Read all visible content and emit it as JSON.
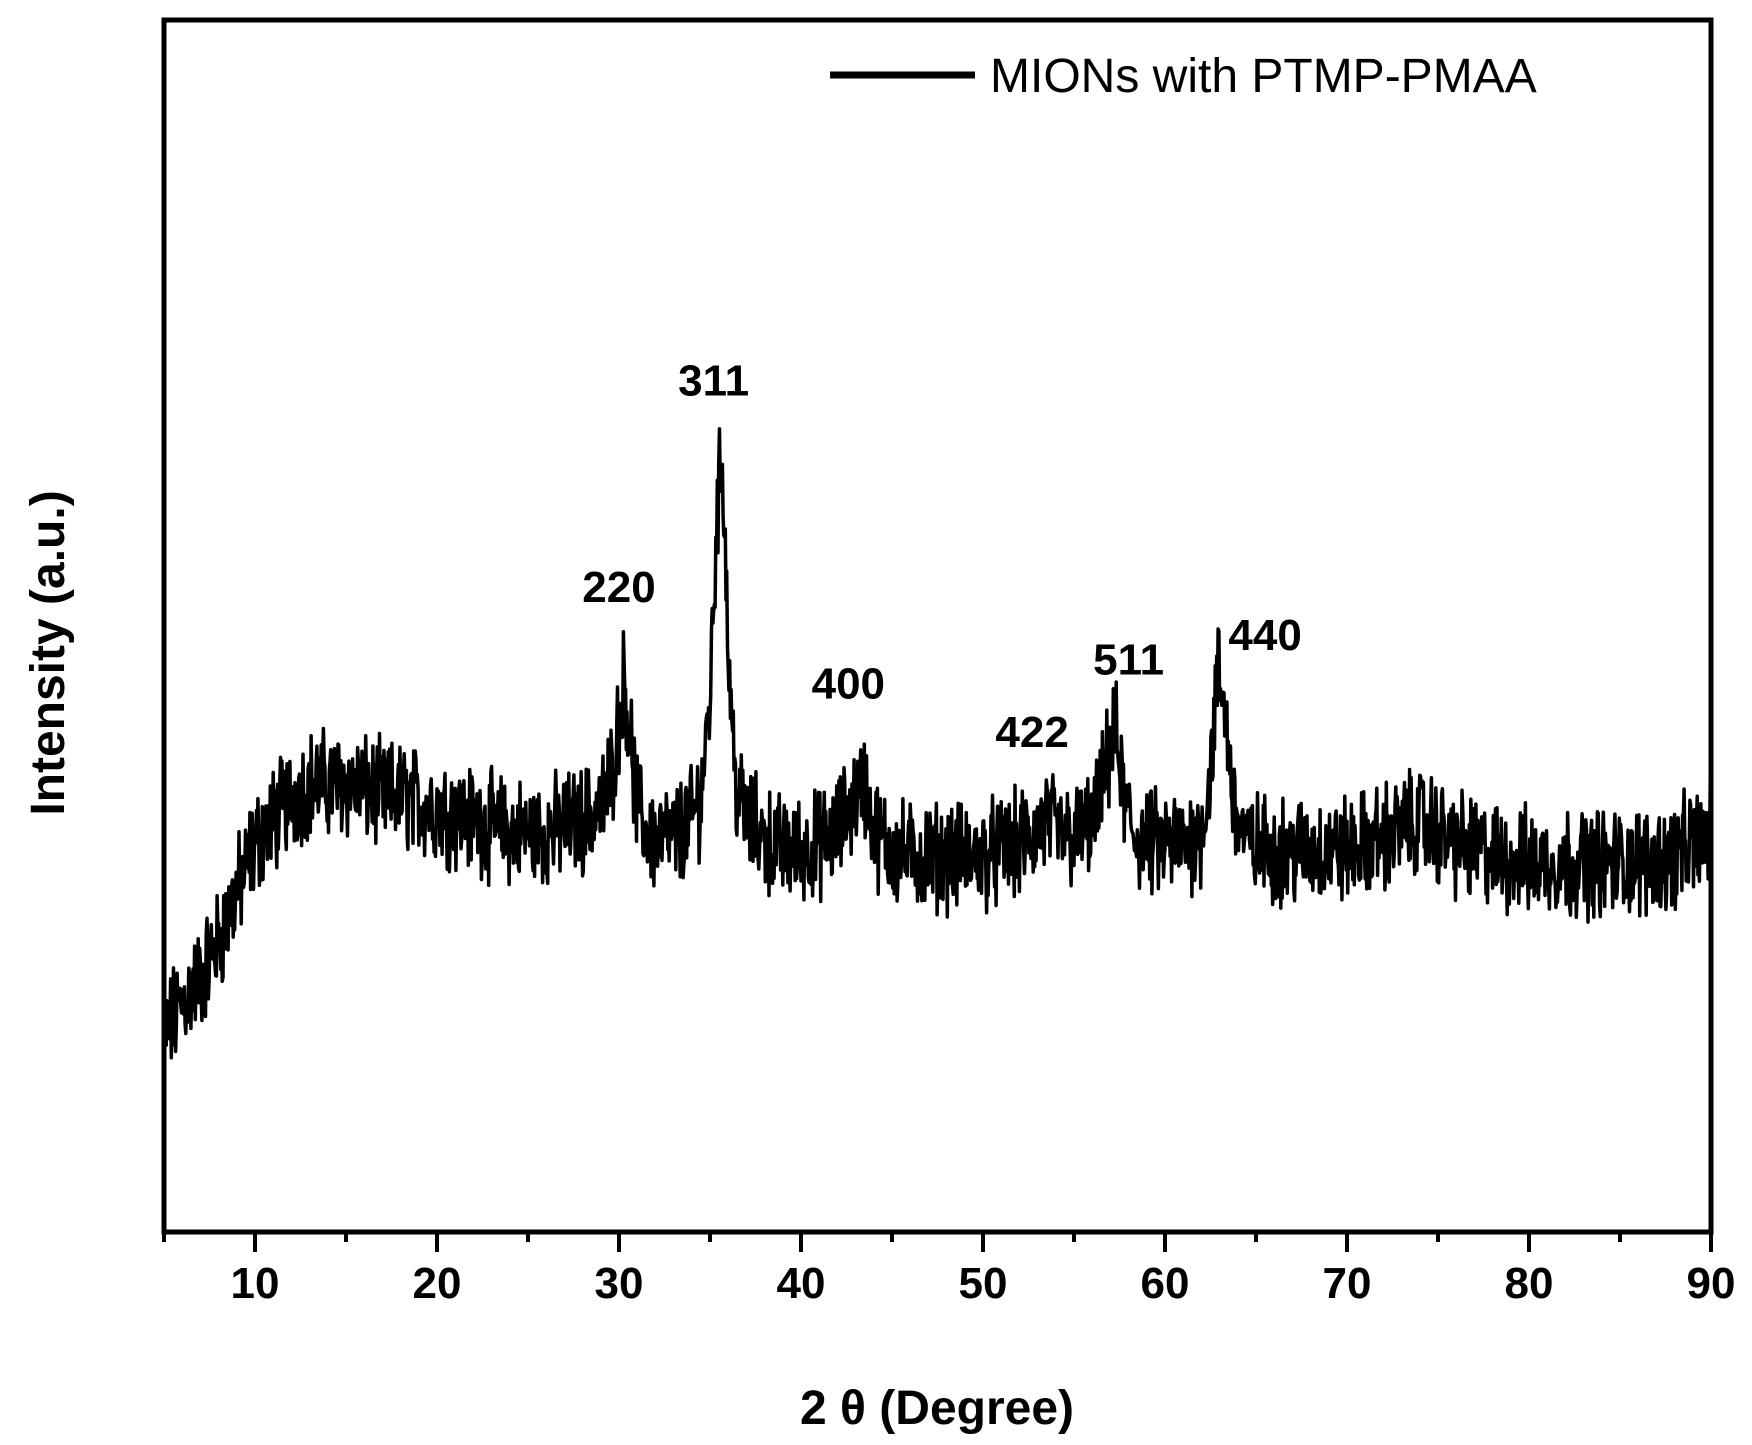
{
  "chart_data": {
    "type": "line",
    "title": "",
    "xlabel": "2 θ (Degree)",
    "ylabel": "Intensity (a.u.)",
    "xlim": [
      5,
      90
    ],
    "ylim": [
      0,
      100
    ],
    "y_ticks_shown": false,
    "x_ticks": [
      10,
      20,
      30,
      40,
      50,
      60,
      70,
      80,
      90
    ],
    "x_minor_step": 5,
    "grid": false,
    "legend": {
      "placement": "top-right"
    },
    "series": [
      {
        "name": "MIONs with PTMP-PMAA",
        "color": "#000000",
        "noise_amplitude": 3.5,
        "x": [
          5,
          6,
          7,
          8,
          9,
          10,
          11,
          12,
          13,
          14,
          15,
          16,
          17,
          18,
          19,
          20,
          21,
          22,
          23,
          24,
          25,
          26,
          27,
          28,
          29,
          29.5,
          30,
          30.3,
          30.6,
          31,
          31.5,
          32,
          33,
          34,
          34.5,
          35,
          35.4,
          35.7,
          36,
          36.4,
          37,
          38,
          39,
          40,
          41,
          42,
          43,
          43.5,
          44,
          45,
          46,
          47,
          48,
          49,
          50,
          51,
          52,
          53,
          53.5,
          54,
          55,
          56,
          56.5,
          57,
          57.3,
          57.7,
          58.2,
          59,
          60,
          61,
          62,
          62.5,
          62.9,
          63.3,
          63.8,
          64.5,
          66,
          68,
          70,
          72,
          74,
          75,
          76,
          78,
          80,
          82,
          84,
          86,
          88,
          90
        ],
        "y": [
          16,
          19,
          21,
          24,
          28,
          32,
          34,
          36,
          37,
          37,
          37,
          36.5,
          36,
          36,
          35.5,
          35,
          34.5,
          34,
          33.5,
          33,
          33,
          33,
          33.5,
          34,
          35,
          37,
          42,
          46,
          41,
          35,
          33,
          32.5,
          32.5,
          34,
          36,
          44,
          60,
          64,
          48,
          37,
          34,
          32.5,
          31.5,
          31.5,
          32,
          33,
          36,
          37,
          33,
          31.5,
          31,
          31,
          31,
          31,
          31,
          31.5,
          32,
          33,
          34,
          33,
          32.5,
          33.5,
          36,
          40,
          41,
          36,
          33,
          32,
          32,
          32,
          33,
          38,
          46,
          43,
          35,
          32,
          31.5,
          31.5,
          31.5,
          32.5,
          34,
          33,
          32,
          31,
          30.5,
          30.5,
          30.5,
          30.5,
          31,
          33
        ]
      }
    ],
    "annotations": [
      {
        "text": "220",
        "x": 30.0,
        "y": 52
      },
      {
        "text": "311",
        "x": 35.2,
        "y": 69
      },
      {
        "text": "400",
        "x": 42.6,
        "y": 44
      },
      {
        "text": "422",
        "x": 52.7,
        "y": 40
      },
      {
        "text": "511",
        "x": 58.0,
        "y": 46
      },
      {
        "text": "440",
        "x": 65.5,
        "y": 48
      }
    ]
  }
}
